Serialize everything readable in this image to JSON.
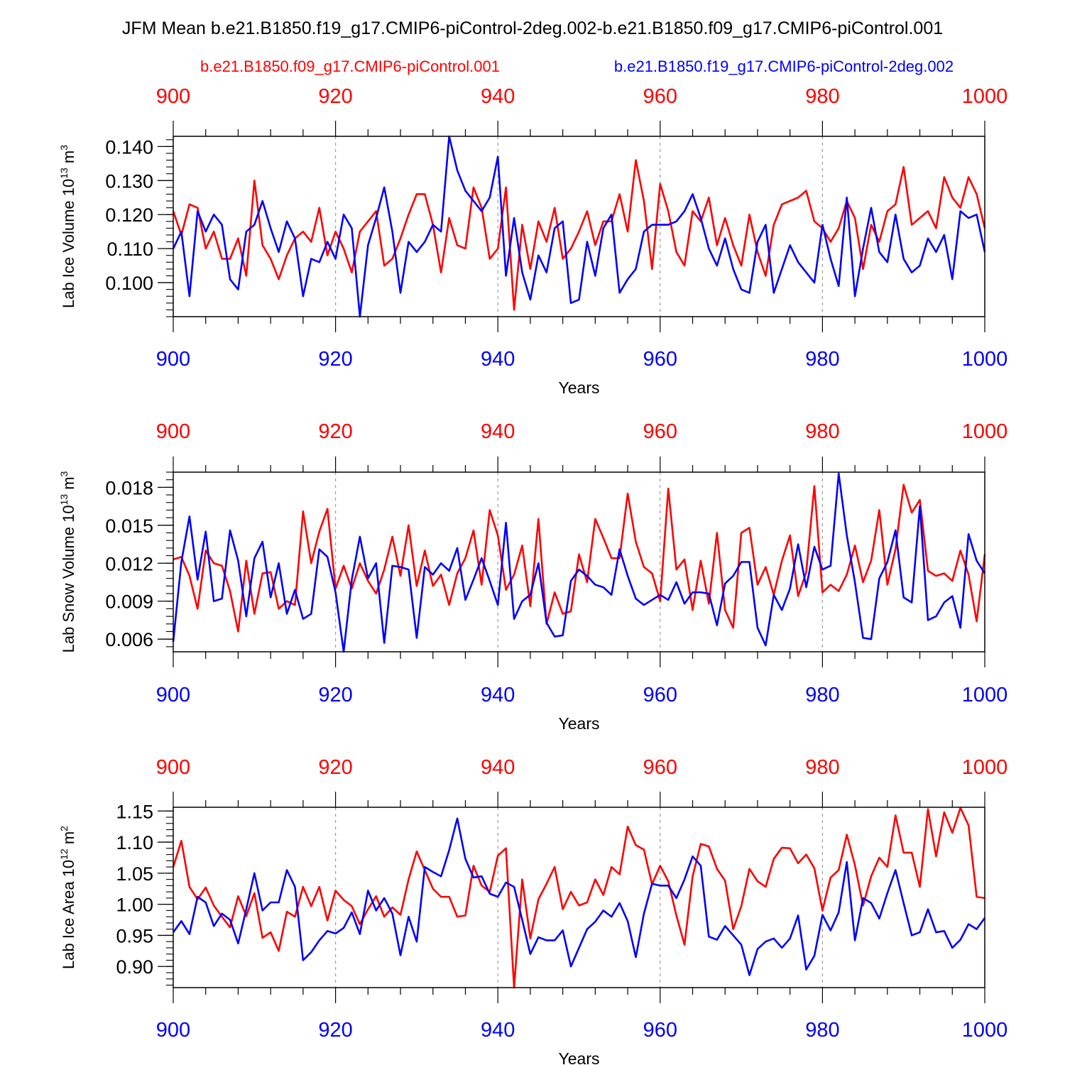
{
  "title": "JFM Mean b.e21.B1850.f19_g17.CMIP6-piControl-2deg.002-b.e21.B1850.f09_g17.CMIP6-piControl.001",
  "legend": {
    "red_label": "b.e21.B1850.f09_g17.CMIP6-piControl.001",
    "blue_label": "b.e21.B1850.f19_g17.CMIP6-piControl-2deg.002"
  },
  "colors": {
    "red": "#ff0000",
    "blue": "#0000ff",
    "axis": "#000000",
    "grid": "#999999"
  },
  "chart_data": [
    {
      "type": "line",
      "ylabel": "Lab Ice Volume 10",
      "ylabel_sup": "13",
      "ylabel_unit": " m",
      "ylabel_unit_sup": "3",
      "xlabel": "Years",
      "xlim": [
        900,
        1000
      ],
      "ylim": [
        0.09,
        0.143
      ],
      "x_ticks": [
        "900",
        "920",
        "940",
        "960",
        "980",
        "1000"
      ],
      "y_ticks": [
        "0.140",
        "0.130",
        "0.120",
        "0.110",
        "0.100"
      ],
      "y_tick_values": [
        0.14,
        0.13,
        0.12,
        0.11,
        0.1
      ],
      "y_minor_step": 0.002,
      "x_start": 900,
      "series": [
        {
          "name": "b.e21.B1850.f09_g17.CMIP6-piControl.001",
          "color": "red",
          "values": [
            0.121,
            0.114,
            0.123,
            0.122,
            0.11,
            0.115,
            0.107,
            0.107,
            0.113,
            0.102,
            0.13,
            0.111,
            0.107,
            0.101,
            0.108,
            0.113,
            0.115,
            0.112,
            0.122,
            0.108,
            0.115,
            0.11,
            0.103,
            0.115,
            0.118,
            0.121,
            0.105,
            0.107,
            0.113,
            0.12,
            0.126,
            0.126,
            0.117,
            0.103,
            0.119,
            0.111,
            0.11,
            0.128,
            0.122,
            0.107,
            0.11,
            0.128,
            0.092,
            0.117,
            0.104,
            0.118,
            0.112,
            0.122,
            0.107,
            0.11,
            0.115,
            0.121,
            0.111,
            0.118,
            0.118,
            0.126,
            0.115,
            0.136,
            0.124,
            0.104,
            0.129,
            0.121,
            0.109,
            0.105,
            0.121,
            0.118,
            0.125,
            0.111,
            0.119,
            0.111,
            0.105,
            0.12,
            0.109,
            0.102,
            0.117,
            0.123,
            0.124,
            0.125,
            0.127,
            0.118,
            0.116,
            0.112,
            0.116,
            0.124,
            0.119,
            0.104,
            0.117,
            0.112,
            0.121,
            0.123,
            0.134,
            0.117,
            0.119,
            0.121,
            0.116,
            0.131,
            0.125,
            0.122,
            0.131,
            0.126,
            0.116
          ]
        },
        {
          "name": "b.e21.B1850.f19_g17.CMIP6-piControl-2deg.002",
          "color": "blue",
          "values": [
            0.11,
            0.115,
            0.096,
            0.121,
            0.115,
            0.12,
            0.117,
            0.101,
            0.098,
            0.115,
            0.117,
            0.124,
            0.116,
            0.109,
            0.118,
            0.113,
            0.096,
            0.107,
            0.106,
            0.112,
            0.107,
            0.12,
            0.116,
            0.09,
            0.111,
            0.119,
            0.128,
            0.115,
            0.097,
            0.112,
            0.109,
            0.112,
            0.117,
            0.115,
            0.143,
            0.133,
            0.127,
            0.124,
            0.121,
            0.125,
            0.137,
            0.102,
            0.119,
            0.103,
            0.095,
            0.108,
            0.103,
            0.116,
            0.118,
            0.094,
            0.095,
            0.112,
            0.102,
            0.116,
            0.12,
            0.097,
            0.101,
            0.104,
            0.115,
            0.117,
            0.117,
            0.117,
            0.118,
            0.121,
            0.126,
            0.119,
            0.11,
            0.105,
            0.113,
            0.104,
            0.098,
            0.097,
            0.112,
            0.117,
            0.097,
            0.104,
            0.111,
            0.106,
            0.103,
            0.1,
            0.117,
            0.107,
            0.099,
            0.125,
            0.096,
            0.11,
            0.122,
            0.109,
            0.106,
            0.12,
            0.107,
            0.103,
            0.105,
            0.113,
            0.109,
            0.114,
            0.101,
            0.121,
            0.119,
            0.12,
            0.109
          ]
        }
      ]
    },
    {
      "type": "line",
      "ylabel": "Lab Snow Volume 10",
      "ylabel_sup": "13",
      "ylabel_unit": " m",
      "ylabel_unit_sup": "3",
      "xlabel": "Years",
      "xlim": [
        900,
        1000
      ],
      "ylim": [
        0.005,
        0.0192
      ],
      "x_ticks": [
        "900",
        "920",
        "940",
        "960",
        "980",
        "1000"
      ],
      "y_ticks": [
        "0.018",
        "0.015",
        "0.012",
        "0.009",
        "0.006"
      ],
      "y_tick_values": [
        0.018,
        0.015,
        0.012,
        0.009,
        0.006
      ],
      "y_minor_step": 0.0006,
      "x_start": 900,
      "series": [
        {
          "name": "b.e21.B1850.f09_g17.CMIP6-piControl.001",
          "color": "red",
          "values": [
            0.0123,
            0.0125,
            0.011,
            0.0084,
            0.013,
            0.012,
            0.0118,
            0.0098,
            0.0066,
            0.0122,
            0.008,
            0.0112,
            0.0113,
            0.0084,
            0.009,
            0.0087,
            0.0161,
            0.012,
            0.0145,
            0.0163,
            0.01,
            0.0118,
            0.01,
            0.012,
            0.0106,
            0.0096,
            0.0115,
            0.0141,
            0.011,
            0.015,
            0.0102,
            0.013,
            0.0102,
            0.0111,
            0.0087,
            0.0112,
            0.0124,
            0.0146,
            0.0103,
            0.0162,
            0.0142,
            0.0099,
            0.0111,
            0.0134,
            0.0086,
            0.0155,
            0.0072,
            0.0097,
            0.008,
            0.0082,
            0.0127,
            0.0105,
            0.0155,
            0.014,
            0.0124,
            0.0124,
            0.0175,
            0.0137,
            0.0117,
            0.0112,
            0.009,
            0.0179,
            0.0115,
            0.0123,
            0.0083,
            0.0122,
            0.0088,
            0.0144,
            0.0083,
            0.0069,
            0.0144,
            0.0148,
            0.0103,
            0.0117,
            0.0095,
            0.0122,
            0.0142,
            0.0094,
            0.0113,
            0.0181,
            0.0097,
            0.0103,
            0.0098,
            0.0111,
            0.0134,
            0.0105,
            0.0122,
            0.0162,
            0.0103,
            0.0131,
            0.0182,
            0.016,
            0.017,
            0.0114,
            0.011,
            0.0112,
            0.0106,
            0.013,
            0.0111,
            0.0074,
            0.0127
          ]
        },
        {
          "name": "b.e21.B1850.f19_g17.CMIP6-piControl-2deg.002",
          "color": "blue",
          "values": [
            0.0058,
            0.0121,
            0.0157,
            0.0107,
            0.0145,
            0.009,
            0.0092,
            0.0146,
            0.0122,
            0.0078,
            0.0124,
            0.0137,
            0.0093,
            0.012,
            0.008,
            0.0099,
            0.0076,
            0.008,
            0.0131,
            0.0125,
            0.0097,
            0.005,
            0.0107,
            0.0141,
            0.0108,
            0.012,
            0.0057,
            0.0118,
            0.0117,
            0.0115,
            0.0061,
            0.0117,
            0.0111,
            0.012,
            0.0114,
            0.0132,
            0.0091,
            0.0107,
            0.0124,
            0.0106,
            0.0087,
            0.0152,
            0.0076,
            0.009,
            0.0095,
            0.012,
            0.0073,
            0.0062,
            0.0063,
            0.0106,
            0.0115,
            0.011,
            0.0103,
            0.0101,
            0.0095,
            0.0131,
            0.011,
            0.0092,
            0.0087,
            0.0091,
            0.0095,
            0.0091,
            0.0105,
            0.0088,
            0.0097,
            0.0097,
            0.0096,
            0.0071,
            0.0104,
            0.011,
            0.0121,
            0.0121,
            0.0069,
            0.0055,
            0.0095,
            0.0083,
            0.01,
            0.0135,
            0.0101,
            0.0133,
            0.0115,
            0.0118,
            0.0191,
            0.0142,
            0.0105,
            0.0061,
            0.006,
            0.0108,
            0.0121,
            0.0146,
            0.0093,
            0.0089,
            0.0165,
            0.0075,
            0.0078,
            0.0089,
            0.0094,
            0.0069,
            0.0143,
            0.0122,
            0.0112
          ]
        }
      ]
    },
    {
      "type": "line",
      "ylabel": "Lab Ice Area 10",
      "ylabel_sup": "12",
      "ylabel_unit": " m",
      "ylabel_unit_sup": "2",
      "xlabel": "Years",
      "xlim": [
        900,
        1000
      ],
      "ylim": [
        0.866,
        1.156
      ],
      "x_ticks": [
        "900",
        "920",
        "940",
        "960",
        "980",
        "1000"
      ],
      "y_ticks": [
        "1.15",
        "1.10",
        "1.05",
        "1.00",
        "0.95",
        "0.90"
      ],
      "y_tick_values": [
        1.15,
        1.1,
        1.05,
        1.0,
        0.95,
        0.9
      ],
      "y_minor_step": 0.01,
      "x_start": 900,
      "series": [
        {
          "name": "b.e21.B1850.f09_g17.CMIP6-piControl.001",
          "color": "red",
          "values": [
            1.06,
            1.102,
            1.028,
            1.008,
            1.027,
            0.998,
            0.98,
            0.963,
            1.013,
            0.981,
            1.018,
            0.946,
            0.955,
            0.925,
            0.988,
            0.98,
            1.028,
            0.997,
            1.028,
            0.974,
            1.022,
            1.007,
            0.997,
            0.968,
            0.992,
            1.013,
            0.98,
            0.995,
            0.983,
            1.04,
            1.085,
            1.055,
            1.025,
            1.012,
            1.012,
            0.98,
            0.982,
            1.062,
            1.03,
            1.02,
            1.078,
            1.09,
            0.866,
            1.04,
            0.945,
            1.008,
            1.033,
            1.06,
            0.992,
            1.02,
            0.998,
            1.003,
            1.04,
            1.015,
            1.06,
            1.048,
            1.125,
            1.095,
            1.088,
            1.032,
            1.062,
            1.037,
            0.982,
            0.935,
            1.045,
            1.097,
            1.093,
            1.057,
            1.038,
            0.96,
            0.997,
            1.057,
            1.037,
            1.028,
            1.073,
            1.091,
            1.09,
            1.066,
            1.08,
            1.058,
            0.99,
            1.043,
            1.055,
            1.112,
            1.063,
            0.998,
            1.045,
            1.075,
            1.06,
            1.143,
            1.083,
            1.083,
            1.028,
            1.153,
            1.077,
            1.148,
            1.115,
            1.155,
            1.127,
            1.012,
            1.01
          ]
        },
        {
          "name": "b.e21.B1850.f19_g17.CMIP6-piControl-2deg.002",
          "color": "blue",
          "values": [
            0.955,
            0.973,
            0.952,
            1.012,
            1.003,
            0.965,
            0.985,
            0.975,
            0.937,
            0.992,
            1.05,
            0.99,
            1.003,
            1.003,
            1.055,
            1.028,
            0.91,
            0.923,
            0.942,
            0.957,
            0.953,
            0.962,
            0.987,
            0.952,
            1.022,
            0.99,
            1.01,
            0.985,
            0.918,
            0.98,
            0.94,
            1.06,
            1.052,
            1.045,
            1.087,
            1.138,
            1.073,
            1.043,
            1.045,
            1.017,
            1.012,
            1.035,
            1.028,
            0.975,
            0.92,
            0.947,
            0.942,
            0.942,
            0.958,
            0.9,
            0.93,
            0.96,
            0.972,
            0.99,
            0.98,
            1.002,
            0.973,
            0.915,
            0.985,
            1.033,
            1.03,
            1.03,
            1.01,
            1.04,
            1.077,
            1.062,
            0.948,
            0.943,
            0.965,
            0.95,
            0.935,
            0.886,
            0.928,
            0.94,
            0.945,
            0.93,
            0.945,
            0.982,
            0.895,
            0.917,
            0.983,
            0.958,
            0.987,
            1.068,
            0.942,
            1.01,
            1.002,
            0.977,
            1.018,
            1.055,
            1.002,
            0.95,
            0.955,
            0.992,
            0.955,
            0.957,
            0.93,
            0.943,
            0.968,
            0.96,
            0.978
          ]
        }
      ]
    }
  ]
}
